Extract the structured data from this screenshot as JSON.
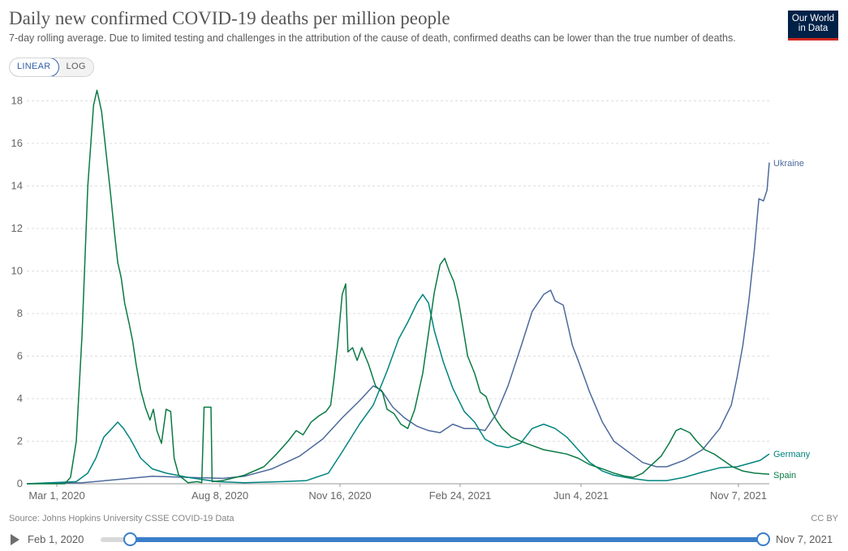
{
  "title": "Daily new confirmed COVID-19 deaths per million people",
  "subtitle": "7-day rolling average. Due to limited testing and challenges in the attribution of the cause of death, confirmed deaths can be lower than the true number of deaths.",
  "logo": {
    "line1": "Our World",
    "line2": "in Data"
  },
  "scale_toggle": {
    "linear_label": "LINEAR",
    "log_label": "LOG",
    "active": "LINEAR"
  },
  "source": "Source: Johns Hopkins University CSSE COVID-19 Data",
  "license": "CC BY",
  "timeline": {
    "start_label": "Feb 1, 2020",
    "end_label": "Nov 7, 2021",
    "start_position": 0.044,
    "end_position": 1.0
  },
  "colors": {
    "ukraine": "#4c6a9c",
    "germany": "#00847e",
    "spain": "#0a7a44",
    "grid": "#dddddd",
    "axis": "#999999",
    "timeline": "#3a7ec9"
  },
  "chart_data": {
    "type": "line",
    "title": "Daily new confirmed COVID-19 deaths per million people",
    "x_axis": {
      "start": "2020-02-01",
      "end": "2021-11-07",
      "tick_labels": [
        "Mar 1, 2020",
        "Aug 8, 2020",
        "Nov 16, 2020",
        "Feb 24, 2021",
        "Jun 4, 2021",
        "Nov 7, 2021"
      ]
    },
    "ylim": [
      0,
      18
    ],
    "y_ticks": [
      0,
      2,
      4,
      6,
      8,
      10,
      12,
      14,
      16,
      18
    ],
    "grid": true,
    "legend": "line-end labels at right",
    "series": [
      {
        "name": "Ukraine",
        "color": "#4c6a9c",
        "points": [
          [
            "2020-02-01",
            0
          ],
          [
            "2020-03-20",
            0.05
          ],
          [
            "2020-04-20",
            0.2
          ],
          [
            "2020-05-20",
            0.35
          ],
          [
            "2020-06-20",
            0.3
          ],
          [
            "2020-07-20",
            0.25
          ],
          [
            "2020-08-08",
            0.35
          ],
          [
            "2020-09-01",
            0.7
          ],
          [
            "2020-09-25",
            1.3
          ],
          [
            "2020-10-15",
            2.1
          ],
          [
            "2020-11-01",
            3.1
          ],
          [
            "2020-11-16",
            3.9
          ],
          [
            "2020-11-28",
            4.6
          ],
          [
            "2020-12-05",
            4.4
          ],
          [
            "2020-12-15",
            3.6
          ],
          [
            "2020-12-25",
            3.1
          ],
          [
            "2021-01-05",
            2.7
          ],
          [
            "2021-01-15",
            2.5
          ],
          [
            "2021-01-25",
            2.4
          ],
          [
            "2021-02-05",
            2.8
          ],
          [
            "2021-02-15",
            2.6
          ],
          [
            "2021-02-24",
            2.6
          ],
          [
            "2021-03-05",
            2.5
          ],
          [
            "2021-03-15",
            3.3
          ],
          [
            "2021-03-25",
            4.6
          ],
          [
            "2021-04-05",
            6.4
          ],
          [
            "2021-04-15",
            8.1
          ],
          [
            "2021-04-25",
            8.9
          ],
          [
            "2021-05-01",
            9.1
          ],
          [
            "2021-05-05",
            8.6
          ],
          [
            "2021-05-12",
            8.4
          ],
          [
            "2021-05-20",
            6.5
          ],
          [
            "2021-05-25",
            5.8
          ],
          [
            "2021-06-04",
            4.3
          ],
          [
            "2021-06-15",
            2.9
          ],
          [
            "2021-06-25",
            2
          ],
          [
            "2021-07-10",
            1.4
          ],
          [
            "2021-07-20",
            1
          ],
          [
            "2021-08-01",
            0.8
          ],
          [
            "2021-08-10",
            0.8
          ],
          [
            "2021-08-25",
            1.1
          ],
          [
            "2021-09-10",
            1.6
          ],
          [
            "2021-09-25",
            2.6
          ],
          [
            "2021-10-05",
            3.7
          ],
          [
            "2021-10-10",
            5
          ],
          [
            "2021-10-15",
            6.5
          ],
          [
            "2021-10-20",
            8.5
          ],
          [
            "2021-10-25",
            11
          ],
          [
            "2021-10-29",
            13.4
          ],
          [
            "2021-11-02",
            13.3
          ],
          [
            "2021-11-05",
            13.8
          ],
          [
            "2021-11-07",
            15.1
          ]
        ]
      },
      {
        "name": "Germany",
        "color": "#00847e",
        "points": [
          [
            "2020-02-01",
            0
          ],
          [
            "2020-03-15",
            0.1
          ],
          [
            "2020-03-25",
            0.5
          ],
          [
            "2020-04-01",
            1.2
          ],
          [
            "2020-04-08",
            2.2
          ],
          [
            "2020-04-15",
            2.6
          ],
          [
            "2020-04-20",
            2.9
          ],
          [
            "2020-04-25",
            2.6
          ],
          [
            "2020-05-01",
            2.1
          ],
          [
            "2020-05-10",
            1.2
          ],
          [
            "2020-05-20",
            0.7
          ],
          [
            "2020-06-01",
            0.5
          ],
          [
            "2020-06-20",
            0.3
          ],
          [
            "2020-07-15",
            0.1
          ],
          [
            "2020-08-08",
            0.05
          ],
          [
            "2020-09-10",
            0.1
          ],
          [
            "2020-10-01",
            0.15
          ],
          [
            "2020-10-20",
            0.5
          ],
          [
            "2020-11-01",
            1.5
          ],
          [
            "2020-11-16",
            2.8
          ],
          [
            "2020-11-28",
            3.7
          ],
          [
            "2020-12-10",
            5.3
          ],
          [
            "2020-12-20",
            6.8
          ],
          [
            "2020-12-28",
            7.6
          ],
          [
            "2021-01-05",
            8.5
          ],
          [
            "2021-01-10",
            8.9
          ],
          [
            "2021-01-15",
            8.5
          ],
          [
            "2021-01-20",
            7.2
          ],
          [
            "2021-01-28",
            5.7
          ],
          [
            "2021-02-05",
            4.5
          ],
          [
            "2021-02-15",
            3.4
          ],
          [
            "2021-02-24",
            2.9
          ],
          [
            "2021-03-05",
            2.1
          ],
          [
            "2021-03-15",
            1.8
          ],
          [
            "2021-03-25",
            1.7
          ],
          [
            "2021-04-05",
            1.9
          ],
          [
            "2021-04-15",
            2.6
          ],
          [
            "2021-04-25",
            2.8
          ],
          [
            "2021-05-05",
            2.6
          ],
          [
            "2021-05-15",
            2.2
          ],
          [
            "2021-05-25",
            1.6
          ],
          [
            "2021-06-04",
            1
          ],
          [
            "2021-06-15",
            0.6
          ],
          [
            "2021-06-25",
            0.4
          ],
          [
            "2021-07-10",
            0.25
          ],
          [
            "2021-07-25",
            0.15
          ],
          [
            "2021-08-10",
            0.15
          ],
          [
            "2021-08-25",
            0.3
          ],
          [
            "2021-09-10",
            0.55
          ],
          [
            "2021-09-25",
            0.75
          ],
          [
            "2021-10-10",
            0.8
          ],
          [
            "2021-10-20",
            0.95
          ],
          [
            "2021-10-30",
            1.1
          ],
          [
            "2021-11-07",
            1.4
          ]
        ]
      },
      {
        "name": "Spain",
        "color": "#0a7a44",
        "points": [
          [
            "2020-02-01",
            0
          ],
          [
            "2020-03-05",
            0
          ],
          [
            "2020-03-10",
            0.3
          ],
          [
            "2020-03-15",
            2
          ],
          [
            "2020-03-20",
            7
          ],
          [
            "2020-03-25",
            14
          ],
          [
            "2020-03-30",
            17.8
          ],
          [
            "2020-04-02",
            18.5
          ],
          [
            "2020-04-06",
            17.5
          ],
          [
            "2020-04-10",
            15.5
          ],
          [
            "2020-04-14",
            13.5
          ],
          [
            "2020-04-17",
            11.9
          ],
          [
            "2020-04-20",
            10.4
          ],
          [
            "2020-04-23",
            9.7
          ],
          [
            "2020-04-26",
            8.5
          ],
          [
            "2020-04-30",
            7.5
          ],
          [
            "2020-05-03",
            6.7
          ],
          [
            "2020-05-06",
            5.6
          ],
          [
            "2020-05-10",
            4.4
          ],
          [
            "2020-05-14",
            3.6
          ],
          [
            "2020-05-18",
            3
          ],
          [
            "2020-05-21",
            3.5
          ],
          [
            "2020-05-24",
            2.5
          ],
          [
            "2020-05-28",
            1.9
          ],
          [
            "2020-06-01",
            3.5
          ],
          [
            "2020-06-05",
            3.4
          ],
          [
            "2020-06-08",
            1.2
          ],
          [
            "2020-06-12",
            0.4
          ],
          [
            "2020-06-20",
            0.05
          ],
          [
            "2020-06-28",
            0.1
          ],
          [
            "2020-07-02",
            0.05
          ],
          [
            "2020-07-04",
            3.6
          ],
          [
            "2020-07-10",
            3.6
          ],
          [
            "2020-07-11",
            0.1
          ],
          [
            "2020-07-20",
            0.15
          ],
          [
            "2020-08-08",
            0.4
          ],
          [
            "2020-08-25",
            0.8
          ],
          [
            "2020-09-05",
            1.4
          ],
          [
            "2020-09-15",
            2
          ],
          [
            "2020-09-22",
            2.5
          ],
          [
            "2020-09-28",
            2.3
          ],
          [
            "2020-10-05",
            2.9
          ],
          [
            "2020-10-12",
            3.2
          ],
          [
            "2020-10-18",
            3.4
          ],
          [
            "2020-10-22",
            3.7
          ],
          [
            "2020-10-25",
            5
          ],
          [
            "2020-10-28",
            6.5
          ],
          [
            "2020-11-01",
            8.9
          ],
          [
            "2020-11-04",
            9.4
          ],
          [
            "2020-11-06",
            6.2
          ],
          [
            "2020-11-10",
            6.4
          ],
          [
            "2020-11-14",
            5.8
          ],
          [
            "2020-11-18",
            6.4
          ],
          [
            "2020-11-24",
            5.6
          ],
          [
            "2020-11-30",
            4.6
          ],
          [
            "2020-12-06",
            4.3
          ],
          [
            "2020-12-10",
            3.5
          ],
          [
            "2020-12-16",
            3.3
          ],
          [
            "2020-12-22",
            2.8
          ],
          [
            "2020-12-28",
            2.6
          ],
          [
            "2021-01-03",
            3.5
          ],
          [
            "2021-01-10",
            5.2
          ],
          [
            "2021-01-15",
            7.1
          ],
          [
            "2021-01-20",
            9
          ],
          [
            "2021-01-25",
            10.3
          ],
          [
            "2021-01-29",
            10.6
          ],
          [
            "2021-02-02",
            10
          ],
          [
            "2021-02-06",
            9.5
          ],
          [
            "2021-02-10",
            8.6
          ],
          [
            "2021-02-14",
            7.3
          ],
          [
            "2021-02-18",
            6
          ],
          [
            "2021-02-24",
            5.2
          ],
          [
            "2021-03-01",
            4.3
          ],
          [
            "2021-03-06",
            4.1
          ],
          [
            "2021-03-10",
            3.5
          ],
          [
            "2021-03-15",
            3
          ],
          [
            "2021-03-20",
            2.6
          ],
          [
            "2021-03-28",
            2.2
          ],
          [
            "2021-04-05",
            2
          ],
          [
            "2021-04-15",
            1.8
          ],
          [
            "2021-04-25",
            1.6
          ],
          [
            "2021-05-05",
            1.5
          ],
          [
            "2021-05-15",
            1.4
          ],
          [
            "2021-05-25",
            1.2
          ],
          [
            "2021-06-04",
            0.9
          ],
          [
            "2021-06-15",
            0.7
          ],
          [
            "2021-06-25",
            0.5
          ],
          [
            "2021-07-05",
            0.35
          ],
          [
            "2021-07-12",
            0.3
          ],
          [
            "2021-07-20",
            0.5
          ],
          [
            "2021-07-28",
            0.9
          ],
          [
            "2021-08-05",
            1.3
          ],
          [
            "2021-08-12",
            1.9
          ],
          [
            "2021-08-18",
            2.5
          ],
          [
            "2021-08-22",
            2.6
          ],
          [
            "2021-08-30",
            2.4
          ],
          [
            "2021-09-05",
            2
          ],
          [
            "2021-09-12",
            1.6
          ],
          [
            "2021-09-20",
            1.4
          ],
          [
            "2021-09-28",
            1.1
          ],
          [
            "2021-10-06",
            0.8
          ],
          [
            "2021-10-15",
            0.6
          ],
          [
            "2021-10-25",
            0.5
          ],
          [
            "2021-11-07",
            0.45
          ]
        ]
      }
    ]
  }
}
